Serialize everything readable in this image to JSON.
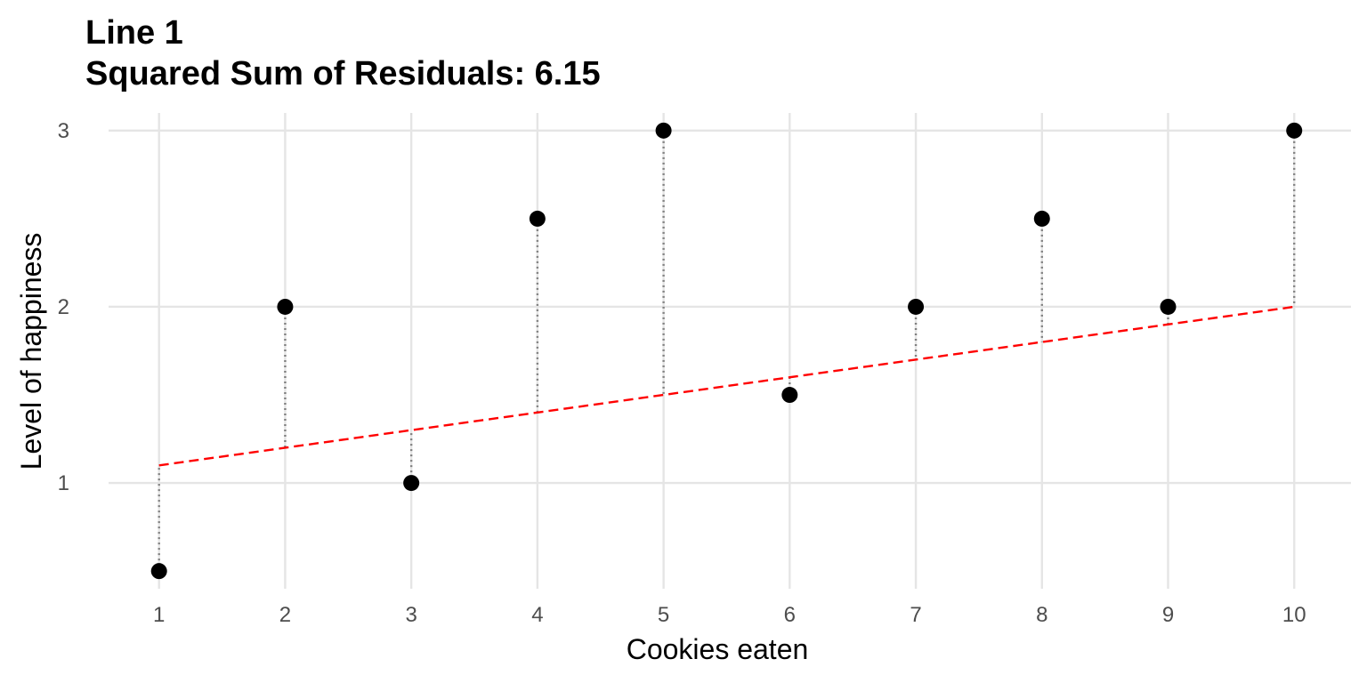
{
  "chart_data": {
    "type": "scatter",
    "title": "Line 1",
    "subtitle": "Squared Sum of Residuals: 6.15",
    "xlabel": "Cookies eaten",
    "ylabel": "Level of happiness",
    "x_ticks": [
      "1",
      "2",
      "3",
      "4",
      "5",
      "6",
      "7",
      "8",
      "9",
      "10"
    ],
    "y_ticks": [
      "1",
      "2",
      "3"
    ],
    "xlim": [
      0.6,
      10.45
    ],
    "ylim": [
      0.4,
      3.1
    ],
    "grid": true,
    "legend": "none",
    "points": [
      {
        "x": 1,
        "y": 0.5
      },
      {
        "x": 2,
        "y": 2.0
      },
      {
        "x": 3,
        "y": 1.0
      },
      {
        "x": 4,
        "y": 2.5
      },
      {
        "x": 5,
        "y": 3.0
      },
      {
        "x": 6,
        "y": 1.5
      },
      {
        "x": 7,
        "y": 2.0
      },
      {
        "x": 8,
        "y": 2.5
      },
      {
        "x": 9,
        "y": 2.0
      },
      {
        "x": 10,
        "y": 3.0
      }
    ],
    "fitted_line": {
      "x": [
        1,
        10
      ],
      "y": [
        1.1,
        2.0
      ],
      "style": "dashed",
      "color": "#ff0000"
    },
    "residuals": {
      "style": "dotted",
      "color": "#808080"
    },
    "colors": {
      "points": "#000000",
      "grid": "#e5e5e5"
    }
  }
}
